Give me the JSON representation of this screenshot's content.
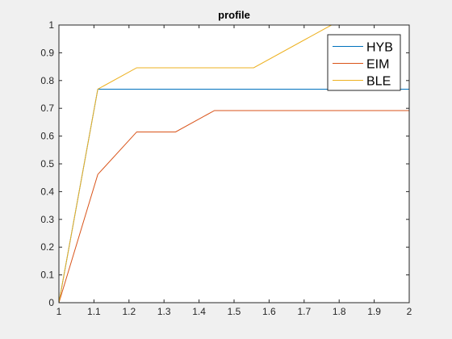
{
  "chart_data": {
    "type": "line",
    "title": "profile",
    "xlabel": "",
    "ylabel": "",
    "xlim": [
      1,
      2
    ],
    "ylim": [
      0,
      1
    ],
    "x_ticks": [
      "1",
      "1.1",
      "1.2",
      "1.3",
      "1.4",
      "1.5",
      "1.6",
      "1.7",
      "1.8",
      "1.9",
      "2"
    ],
    "y_ticks": [
      "0",
      "0.1",
      "0.2",
      "0.3",
      "0.4",
      "0.5",
      "0.6",
      "0.7",
      "0.8",
      "0.9",
      "1"
    ],
    "grid": false,
    "legend_position": "top-right",
    "series": [
      {
        "name": "HYB",
        "color": "#0072BD",
        "points": [
          [
            1.0,
            0.0
          ],
          [
            1.111,
            0.769
          ],
          [
            2.0,
            0.769
          ]
        ]
      },
      {
        "name": "EIM",
        "color": "#D95319",
        "points": [
          [
            1.0,
            0.0
          ],
          [
            1.111,
            0.462
          ],
          [
            1.222,
            0.615
          ],
          [
            1.333,
            0.615
          ],
          [
            1.444,
            0.692
          ],
          [
            2.0,
            0.692
          ]
        ]
      },
      {
        "name": "BLE",
        "color": "#EDB120",
        "points": [
          [
            1.0,
            0.0
          ],
          [
            1.111,
            0.769
          ],
          [
            1.222,
            0.846
          ],
          [
            1.556,
            0.846
          ],
          [
            1.778,
            1.0
          ],
          [
            2.0,
            1.0
          ]
        ]
      }
    ]
  }
}
